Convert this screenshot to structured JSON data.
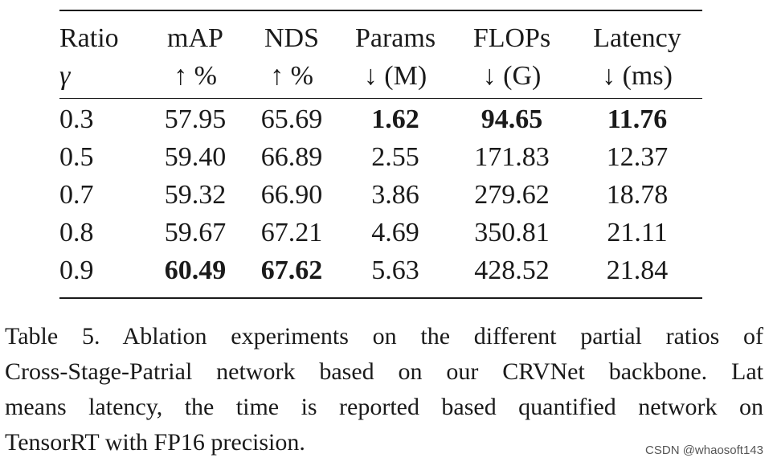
{
  "table": {
    "header_row1": [
      "Ratio",
      "mAP",
      "NDS",
      "Params",
      "FLOPs",
      "Latency"
    ],
    "header_row2": [
      "γ",
      "↑ %",
      "↑ %",
      "↓ (M)",
      "↓ (G)",
      "↓ (ms)"
    ],
    "rows": [
      {
        "cells": [
          "0.3",
          "57.95",
          "65.69",
          "1.62",
          "94.65",
          "11.76"
        ],
        "bold": [
          false,
          false,
          false,
          true,
          true,
          true
        ]
      },
      {
        "cells": [
          "0.5",
          "59.40",
          "66.89",
          "2.55",
          "171.83",
          "12.37"
        ],
        "bold": [
          false,
          false,
          false,
          false,
          false,
          false
        ]
      },
      {
        "cells": [
          "0.7",
          "59.32",
          "66.90",
          "3.86",
          "279.62",
          "18.78"
        ],
        "bold": [
          false,
          false,
          false,
          false,
          false,
          false
        ]
      },
      {
        "cells": [
          "0.8",
          "59.67",
          "67.21",
          "4.69",
          "350.81",
          "21.11"
        ],
        "bold": [
          false,
          false,
          false,
          false,
          false,
          false
        ]
      },
      {
        "cells": [
          "0.9",
          "60.49",
          "67.62",
          "5.63",
          "428.52",
          "21.84"
        ],
        "bold": [
          false,
          true,
          true,
          false,
          false,
          false
        ]
      }
    ]
  },
  "caption": {
    "lines": [
      "Table 5.  Ablation experiments on the different partial ratios of",
      "Cross-Stage-Patrial network based on our CRVNet backbone. Lat",
      "means latency, the time is reported based quantified network on",
      "TensorRT with FP16 precision."
    ]
  },
  "watermark": "CSDN @whaosoft143"
}
